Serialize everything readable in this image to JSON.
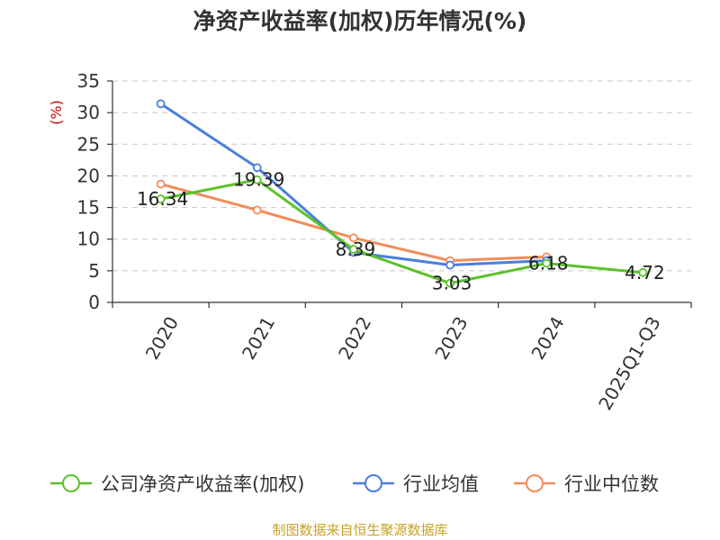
{
  "chart_data": {
    "type": "line",
    "title": "净资产收益率(加权)历年情况(%)",
    "ylabel": "(%)",
    "categories": [
      "2020",
      "2021",
      "2022",
      "2023",
      "2024",
      "2025Q1-Q3"
    ],
    "ylim": [
      0,
      35
    ],
    "yticks": [
      0,
      5,
      10,
      15,
      20,
      25,
      30,
      35
    ],
    "grid": true,
    "legend_position": "bottom",
    "series": [
      {
        "name": "公司净资产收益率(加权)",
        "color": "#5cc12b",
        "values": [
          16.34,
          19.39,
          8.39,
          3.03,
          6.18,
          4.72
        ],
        "labels": [
          "16.34",
          "19.39",
          "8.39",
          "3.03",
          "6.18",
          "4.72"
        ]
      },
      {
        "name": "行业均值",
        "color": "#4a7fdc",
        "values": [
          31.4,
          21.3,
          7.9,
          5.9,
          6.6,
          null
        ],
        "labels": []
      },
      {
        "name": "行业中位数",
        "color": "#f28c5a",
        "values": [
          18.7,
          14.6,
          10.2,
          6.6,
          7.2,
          null
        ],
        "labels": []
      }
    ]
  },
  "footer": {
    "source": "制图数据来自恒生聚源数据库"
  }
}
